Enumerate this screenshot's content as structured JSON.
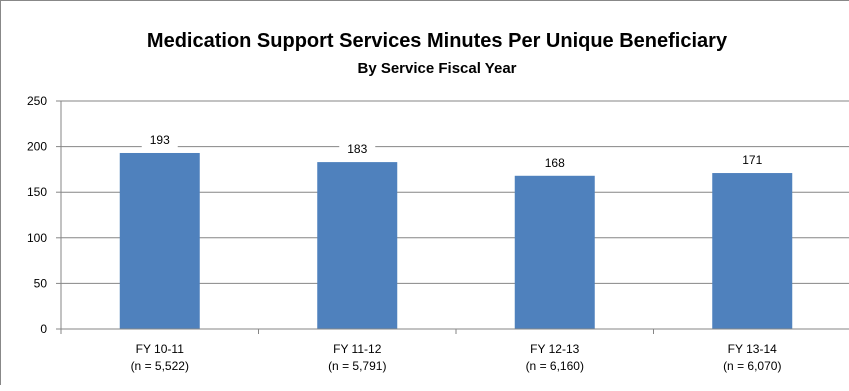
{
  "chart_data": {
    "type": "bar",
    "title": "Medication Support Services Minutes Per Unique Beneficiary",
    "subtitle": "By Service Fiscal Year",
    "categories": [
      "FY 10-11",
      "FY 11-12",
      "FY 12-13",
      "FY 13-14"
    ],
    "category_sublabels": [
      "(n = 5,522)",
      "(n = 5,791)",
      "(n = 6,160)",
      "(n = 6,070)"
    ],
    "values": [
      193,
      183,
      168,
      171
    ],
    "data_labels": [
      "193",
      "183",
      "168",
      "171"
    ],
    "ylim": [
      0,
      250
    ],
    "yticks": [
      0,
      50,
      100,
      150,
      200,
      250
    ],
    "grid": true,
    "legend": false,
    "bar_color": "#4F81BD",
    "grid_color": "#868686"
  }
}
